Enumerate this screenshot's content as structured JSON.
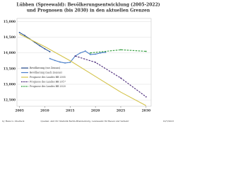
{
  "chart_data": {
    "type": "line",
    "title": "Lübben (Spreewald): Bevölkerungsentwicklung (2005-2022)",
    "subtitle": "und Prognosen (bis 2030) in den aktuellen Grenzen",
    "xlim": [
      2004.5,
      2031
    ],
    "xticks": [
      2005,
      2010,
      2015,
      2020,
      2025,
      2030
    ],
    "ylim": [
      12300,
      15100
    ],
    "yticks": [
      {
        "value": 12500,
        "label": "12,500"
      },
      {
        "value": 13000,
        "label": "13,000"
      },
      {
        "value": 13500,
        "label": "13,500"
      },
      {
        "value": 14000,
        "label": "14,000"
      },
      {
        "value": 14500,
        "label": "14,500"
      },
      {
        "value": 15000,
        "label": "15,000"
      }
    ],
    "grid": true,
    "series": [
      {
        "name": "Bevölkerung (vor Zensus)",
        "color": "#2a4f8f",
        "dash": false,
        "markers": true,
        "x": [
          2005,
          2006,
          2007,
          2008,
          2009,
          2010,
          2011
        ],
        "values": [
          14650,
          14560,
          14450,
          14340,
          14230,
          14130,
          14040
        ]
      },
      {
        "name": "Bevölkerung (nach Zensus)",
        "color": "#4a7fc9",
        "dash": false,
        "markers": true,
        "x": [
          2011,
          2012,
          2013,
          2014,
          2015,
          2016,
          2017,
          2018,
          2019,
          2020,
          2021,
          2022
        ],
        "values": [
          13820,
          13760,
          13710,
          13680,
          13700,
          13900,
          14000,
          14060,
          13950,
          13960,
          14000,
          14020
        ]
      },
      {
        "name": "Prognose des Landes BB 2005",
        "color": "#d4c34a",
        "dash": false,
        "markers": false,
        "x": [
          2005,
          2010,
          2015,
          2020,
          2025,
          2030
        ],
        "values": [
          14600,
          14200,
          13750,
          13250,
          12750,
          12320
        ]
      },
      {
        "name": "Prognose des Landes BB 2017",
        "color": "#4b2a7a",
        "dash": true,
        "markers": true,
        "x": [
          2016,
          2020,
          2025,
          2030
        ],
        "values": [
          13900,
          13700,
          13200,
          12600
        ]
      },
      {
        "name": "Prognose des Landes BB 2020",
        "color": "#2f9a3a",
        "dash": true,
        "markers": true,
        "x": [
          2019,
          2025,
          2030
        ],
        "values": [
          14000,
          14100,
          14050
        ]
      }
    ],
    "footer_left": "by Hans G. Oberlack",
    "footer_center": "Quellen: Amt für Statistik Berlin-Brandenburg, Landesamt für Bauen und Verkehr",
    "footer_right": "10/7/2023"
  }
}
